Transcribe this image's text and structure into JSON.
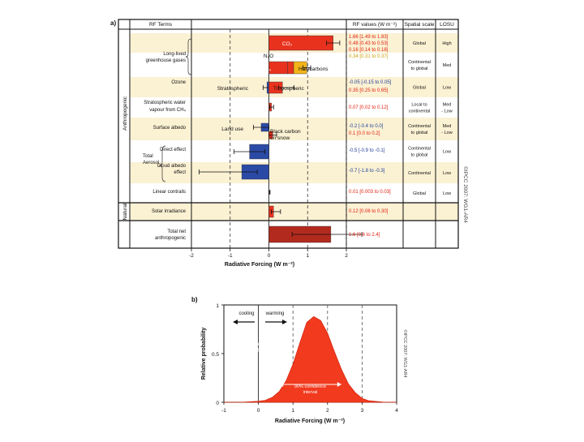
{
  "panel_a": {
    "label": "a)",
    "headers": {
      "terms": "RF Terms",
      "values": "RF values (W m⁻²)",
      "scale": "Spatial scale",
      "losu": "LOSU"
    },
    "group_labels": {
      "anthropogenic": "Anthropogenic",
      "natural": "Natural"
    },
    "watermark": "©IPCC 2007: WG1-AR4",
    "x_axis_label": "Radiative Forcing (W m⁻²)",
    "x_ticks": [
      "-2",
      "-1",
      "0",
      "1",
      "2"
    ],
    "rows": [
      {
        "term": [
          "Long-lived",
          "greenhouse gases"
        ],
        "values": [
          "1.66 [1.49 to 1.83]",
          "0.48 [0.43 to 0.53]",
          "0.16 [0.14 to 0.18]",
          "0.34 [0.31 to 0.37]"
        ],
        "value_colors": [
          "#e02010",
          "#e02010",
          "#e02010",
          "#c8a000"
        ],
        "scale": [
          "Global"
        ],
        "losu": [
          "High"
        ]
      },
      {
        "term": [
          "Ozone"
        ],
        "values": [
          "-0.05 [-0.15 to 0.05]",
          "0.35 [0.25 to 0.65]"
        ],
        "value_colors": [
          "#1f3f99",
          "#e02010"
        ],
        "scale": [
          "Continental",
          "to global"
        ],
        "losu": [
          "Med"
        ]
      },
      {
        "term": [
          "Stratospheric water",
          "vapour from CH₄"
        ],
        "values": [
          "0.07 [0.02 to 0.12]"
        ],
        "value_colors": [
          "#e02010"
        ],
        "scale": [
          "Global"
        ],
        "losu": [
          "Low"
        ]
      },
      {
        "term": [
          "Surface albedo"
        ],
        "values": [
          "-0.2 [-0.4 to 0.0]",
          "0.1 [0.0 to 0.2]"
        ],
        "value_colors": [
          "#1f3f99",
          "#e02010"
        ],
        "scale": [
          "Local to",
          "continental"
        ],
        "losu": [
          "Med",
          "- Low"
        ]
      },
      {
        "term": [
          "Direct effect"
        ],
        "values": [
          "-0.5 [-0.9 to -0.1]"
        ],
        "value_colors": [
          "#1f3f99"
        ],
        "scale": [
          "Continental",
          "to global"
        ],
        "losu": [
          "Med",
          "- Low"
        ]
      },
      {
        "term": [
          "Cloud albedo",
          "effect"
        ],
        "values": [
          "-0.7 [-1.8 to -0.3]"
        ],
        "value_colors": [
          "#1f3f99"
        ],
        "scale": [
          "Continental",
          "to global"
        ],
        "losu": [
          "Low"
        ]
      },
      {
        "term": [
          "Linear contrails"
        ],
        "values": [
          "0.01 [0.003 to 0.03]"
        ],
        "value_colors": [
          "#e02010"
        ],
        "scale": [
          "Continental"
        ],
        "losu": [
          "Low"
        ]
      },
      {
        "term": [
          "Solar irradiance"
        ],
        "values": [
          "0.12 [0.06 to 0.30]"
        ],
        "value_colors": [
          "#e02010"
        ],
        "scale": [
          "Global"
        ],
        "losu": [
          "Low"
        ]
      },
      {
        "term": [
          "Total net",
          "anthropogenic"
        ],
        "values": [
          "1.6 [0.6 to 2.4]"
        ],
        "value_colors": [
          "#e02010"
        ],
        "scale": [],
        "losu": []
      }
    ],
    "aerosol_group_label": [
      "Total",
      "Aerosol"
    ],
    "annotations": {
      "co2": "CO₂",
      "n2o": "N₂O",
      "ch4": "CH₄",
      "halocarbons": "Halocarbons",
      "stratospheric": "Stratospheric",
      "tropospheric": "Tropospheric",
      "land_use": "Land use",
      "black_carbon": [
        "Black carbon",
        "on snow"
      ]
    }
  },
  "panel_b": {
    "label": "b)",
    "y_axis_label": "Relative probability",
    "x_axis_label": "Radiative Forcing (W m⁻²)",
    "cooling": "cooling",
    "warming": "warming",
    "curve_label": [
      "Total anthropogenic",
      "radiative forcing"
    ],
    "interval_label": [
      "90% confidence",
      "interval"
    ],
    "watermark": "©IPCC 2007: WG1-AR4",
    "x_ticks": [
      "-1",
      "0",
      "1",
      "2",
      "3",
      "4"
    ],
    "y_ticks": [
      "0",
      "0.5",
      "1"
    ]
  },
  "chart_data": [
    {
      "type": "bar",
      "orientation": "horizontal",
      "xlabel": "Radiative Forcing (W m⁻²)",
      "xlim": [
        -2,
        2
      ],
      "grid": "dashed vertical lines at -1, 1 and 2",
      "bars": [
        {
          "term": "Long-lived greenhouse gases",
          "component": "CO2",
          "start": 0,
          "value": 1.66,
          "low": 1.49,
          "high": 1.83,
          "color": "#e8321e"
        },
        {
          "term": "Long-lived greenhouse gases",
          "component": "CH4",
          "start": 0,
          "value": 0.48,
          "color": "#e8321e"
        },
        {
          "term": "Long-lived greenhouse gases",
          "component": "N2O",
          "start": 0.48,
          "value": 0.16,
          "color": "#e8321e"
        },
        {
          "term": "Long-lived greenhouse gases",
          "component": "Halocarbons",
          "start": 0.64,
          "value": 0.34,
          "low": 0.88,
          "high": 1.08,
          "color": "#f2b418"
        },
        {
          "term": "Ozone",
          "component": "Stratospheric",
          "start": 0,
          "value": -0.05,
          "low": -0.15,
          "high": 0.05,
          "color": "#2a4aa5"
        },
        {
          "term": "Ozone",
          "component": "Tropospheric",
          "start": 0,
          "value": 0.35,
          "low": 0.25,
          "high": 0.65,
          "color": "#e8321e"
        },
        {
          "term": "Stratospheric water vapour from CH4",
          "start": 0,
          "value": 0.07,
          "low": 0.02,
          "high": 0.12,
          "color": "#e8321e"
        },
        {
          "term": "Surface albedo",
          "component": "Land use",
          "start": 0,
          "value": -0.2,
          "low": -0.4,
          "high": 0.0,
          "color": "#2a4aa5"
        },
        {
          "term": "Surface albedo",
          "component": "Black carbon on snow",
          "start": 0,
          "value": 0.1,
          "low": 0.0,
          "high": 0.2,
          "color": "#e8321e"
        },
        {
          "term": "Total Aerosol",
          "component": "Direct effect",
          "start": 0,
          "value": -0.5,
          "low": -0.9,
          "high": -0.1,
          "color": "#2a4aa5"
        },
        {
          "term": "Total Aerosol",
          "component": "Cloud albedo effect",
          "start": 0,
          "value": -0.7,
          "low": -1.8,
          "high": -0.3,
          "color": "#2a4aa5"
        },
        {
          "term": "Linear contrails",
          "start": 0,
          "value": 0.01,
          "low": 0.003,
          "high": 0.03,
          "color": "#e8321e"
        },
        {
          "term": "Solar irradiance",
          "start": 0,
          "value": 0.12,
          "low": 0.06,
          "high": 0.3,
          "color": "#e8321e"
        },
        {
          "term": "Total net anthropogenic",
          "start": 0,
          "value": 1.6,
          "low": 0.6,
          "high": 2.4,
          "color": "#b22a1e"
        }
      ]
    },
    {
      "type": "area",
      "xlabel": "Radiative Forcing (W m⁻²)",
      "ylabel": "Relative probability",
      "xlim": [
        -1,
        4
      ],
      "ylim": [
        0,
        1
      ],
      "grid": "dashed vertical lines at 1, 2 and 3",
      "series": [
        {
          "name": "Total anthropogenic radiative forcing",
          "color": "#f23a1e",
          "x": [
            -1.0,
            -0.5,
            0.0,
            0.2,
            0.4,
            0.6,
            0.8,
            1.0,
            1.2,
            1.4,
            1.6,
            1.8,
            2.0,
            2.2,
            2.4,
            2.6,
            2.8,
            3.0,
            3.2,
            3.6,
            4.0
          ],
          "y": [
            0.0,
            0.0,
            0.01,
            0.02,
            0.05,
            0.11,
            0.22,
            0.39,
            0.61,
            0.82,
            0.88,
            0.84,
            0.71,
            0.52,
            0.34,
            0.19,
            0.1,
            0.04,
            0.015,
            0.002,
            0.0
          ]
        }
      ],
      "interval": {
        "label": "90% confidence interval",
        "low": 0.6,
        "high": 2.4
      }
    }
  ]
}
